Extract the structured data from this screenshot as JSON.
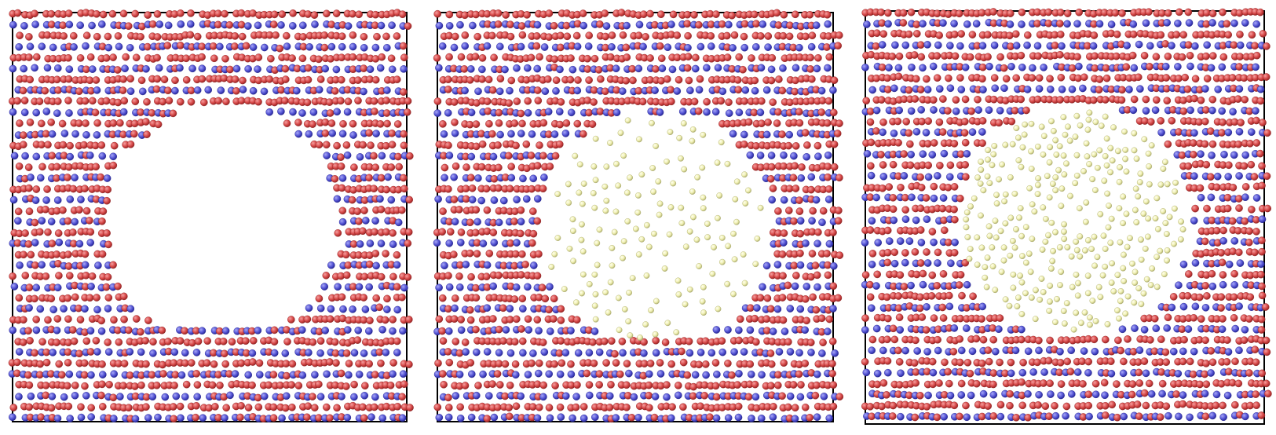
{
  "figure": {
    "colors": {
      "atom_a": "#d84a4a",
      "atom_a_rim": "#8e2020",
      "atom_b": "#5656d6",
      "atom_b_rim": "#22228e",
      "guest": "#efefb0",
      "guest_rim": "#a8a86a",
      "frame": "#000000",
      "background": "#ffffff"
    },
    "panels": [
      {
        "id": "panel-1",
        "guest_atoms_present": false,
        "guest_count": 0
      },
      {
        "id": "panel-2",
        "guest_atoms_present": true,
        "guest_count": 150
      },
      {
        "id": "panel-3",
        "guest_atoms_present": true,
        "guest_count": 300
      }
    ]
  }
}
